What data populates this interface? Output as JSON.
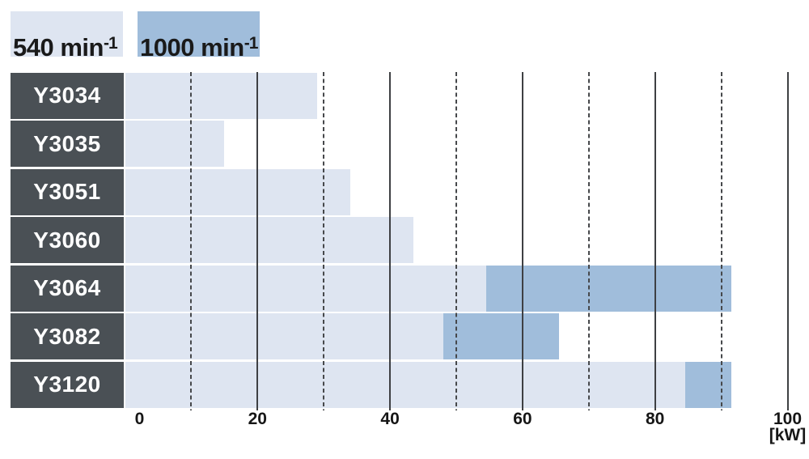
{
  "legend": {
    "items": [
      {
        "name": "540-rpm",
        "label": "540 min",
        "superscript": "-1",
        "color": "#dee5f1"
      },
      {
        "name": "1000-rpm",
        "label": "1000 min",
        "superscript": "-1",
        "color": "#a0bddb"
      }
    ]
  },
  "chart_data": {
    "type": "bar",
    "orientation": "horizontal",
    "title": "",
    "categories": [
      "Y3034",
      "Y3035",
      "Y3051",
      "Y3060",
      "Y3064",
      "Y3082",
      "Y3120"
    ],
    "series": [
      {
        "name": "540 min-1",
        "color": "#dee5f1",
        "values": [
          29,
          15,
          34,
          43.5,
          54.5,
          48,
          84.5
        ]
      },
      {
        "name": "1000 min-1",
        "color": "#a0bddb",
        "values": [
          null,
          null,
          null,
          null,
          91.5,
          65.5,
          91.5
        ],
        "note": "drawn from the 540 value to the 1000 value"
      }
    ],
    "xlabel": "[kW]",
    "xlim": [
      0,
      100
    ],
    "x_tick_labels": [
      0,
      20,
      40,
      60,
      80,
      100
    ],
    "x_gridlines_solid": [
      20,
      40,
      60,
      80,
      100
    ],
    "x_gridlines_dashed": [
      10,
      30,
      50,
      70,
      90
    ],
    "legend_position": "top-left",
    "grid": true
  },
  "colors": {
    "bar_540": "#dee5f1",
    "bar_1000": "#a0bddb",
    "row_label_bg": "#4a5055",
    "row_label_text": "#ffffff",
    "gridline": "#3e4043",
    "axis_text": "#161616",
    "background": "#ffffff"
  }
}
